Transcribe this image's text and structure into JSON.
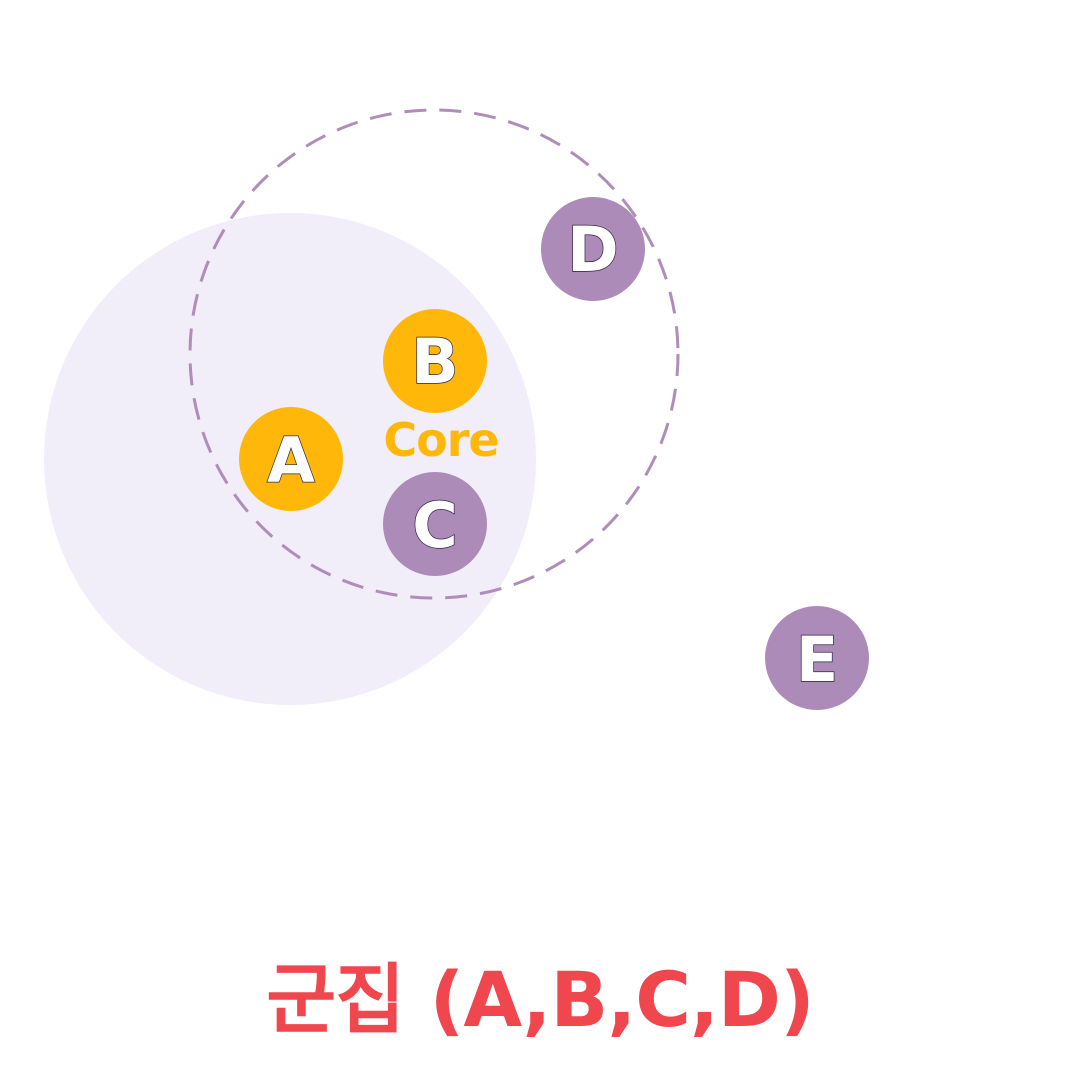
{
  "colors": {
    "background": "#ffffff",
    "core_region_fill": "#f1edf9",
    "cluster_outline": "#af8db9",
    "core_node": "#ffb80a",
    "border_node": "#ad8bb8",
    "core_label": "#ffb80a",
    "caption": "#f0474e"
  },
  "core_label": "Core",
  "nodes": [
    {
      "label": "A",
      "kind": "core"
    },
    {
      "label": "B",
      "kind": "core"
    },
    {
      "label": "C",
      "kind": "border"
    },
    {
      "label": "D",
      "kind": "border"
    },
    {
      "label": "E",
      "kind": "noise"
    }
  ],
  "caption": "군집 (A,B,C,D)"
}
